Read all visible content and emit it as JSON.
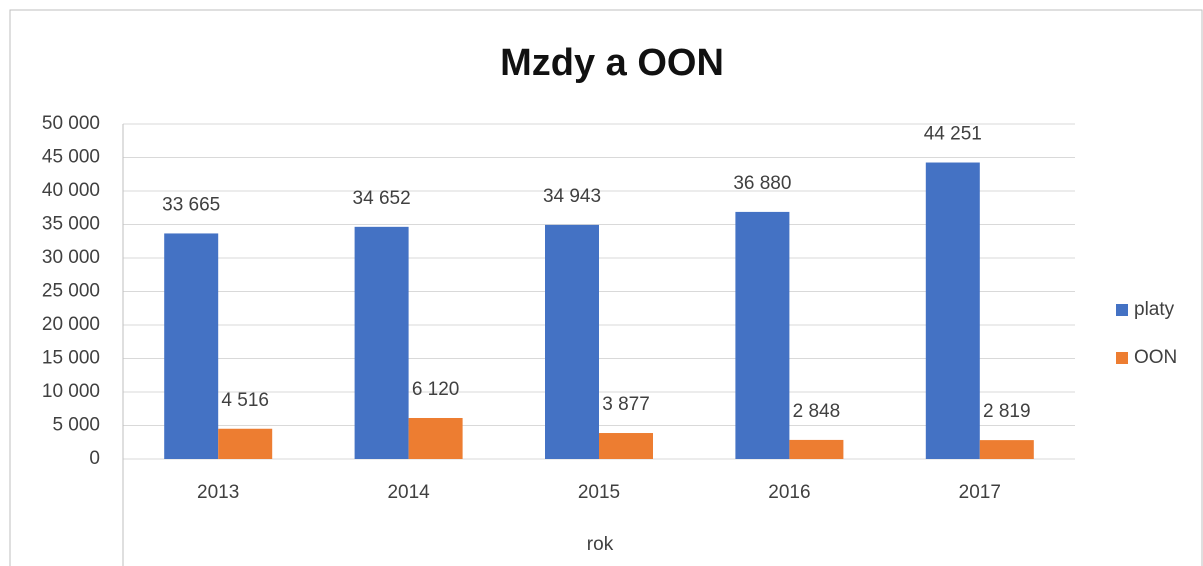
{
  "chart_data": {
    "type": "bar",
    "title": "Mzdy a OON",
    "x_label": "rok",
    "categories": [
      "2013",
      "2014",
      "2015",
      "2016",
      "2017"
    ],
    "series": [
      {
        "name": "platy",
        "color": "#4472c4",
        "values": [
          33665,
          34652,
          34943,
          36880,
          44251
        ],
        "value_labels": [
          "33 665",
          "34 652",
          "34 943",
          "36 880",
          "44 251"
        ]
      },
      {
        "name": "OON",
        "color": "#ed7d31",
        "values": [
          4516,
          6120,
          3877,
          2848,
          2819
        ],
        "value_labels": [
          "4 516",
          "6 120",
          "3 877",
          "2 848",
          "2 819"
        ]
      }
    ],
    "ylim": [
      0,
      50000
    ],
    "yticks": [
      0,
      {
        "value": 5000,
        "label": "5 000"
      },
      {
        "value": 10000,
        "label": "10 000"
      },
      {
        "value": 15000,
        "label": "15 000"
      },
      {
        "value": 20000,
        "label": "20 000"
      },
      {
        "value": 25000,
        "label": "25 000"
      },
      {
        "value": 30000,
        "label": "30 000"
      },
      {
        "value": 35000,
        "label": "35 000"
      },
      {
        "value": 40000,
        "label": "40 000"
      },
      {
        "value": 45000,
        "label": "45 000"
      },
      {
        "value": 50000,
        "label": "50 000"
      }
    ],
    "grid": true,
    "legend": "right"
  }
}
